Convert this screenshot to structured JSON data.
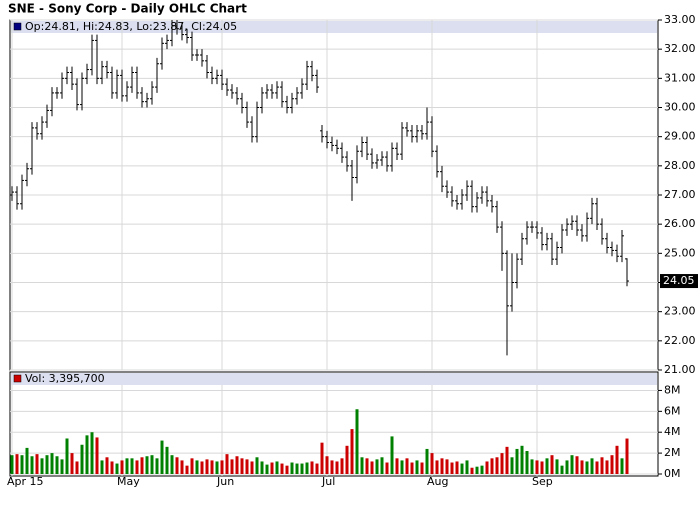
{
  "chart_data": [
    {
      "type": "ohlc",
      "title": "SNE - Sony Corp - Daily OHLC Chart",
      "legend": "Op:24.81, Hi:24.83, Lo:23.87, Cl:24.05",
      "categories": [
        "Apr 15",
        null,
        null,
        null,
        null,
        null,
        null,
        null,
        null,
        null,
        null,
        null,
        null,
        null,
        null,
        null,
        null,
        null,
        null,
        null,
        null,
        null,
        "May",
        null,
        null,
        null,
        null,
        null,
        null,
        null,
        null,
        null,
        null,
        null,
        null,
        null,
        null,
        null,
        null,
        null,
        null,
        null,
        "Jun",
        null,
        null,
        null,
        null,
        null,
        null,
        null,
        null,
        null,
        null,
        null,
        null,
        null,
        null,
        null,
        null,
        null,
        null,
        null,
        null,
        "Jul",
        null,
        null,
        null,
        null,
        null,
        null,
        null,
        null,
        null,
        null,
        null,
        null,
        null,
        null,
        null,
        null,
        null,
        null,
        null,
        null,
        "Aug",
        null,
        null,
        null,
        null,
        null,
        null,
        null,
        null,
        null,
        null,
        null,
        null,
        null,
        null,
        null,
        null,
        null,
        null,
        null,
        null,
        "Sep",
        null,
        null,
        null,
        null,
        null,
        null,
        null,
        null,
        null,
        null,
        null,
        null,
        null,
        null,
        null,
        null,
        null,
        null
      ],
      "open": [
        27.0,
        27.1,
        26.7,
        27.5,
        27.9,
        29.3,
        29.1,
        29.5,
        29.9,
        30.5,
        30.5,
        31.0,
        31.2,
        30.8,
        30.1,
        31.0,
        31.3,
        32.3,
        31.0,
        31.4,
        31.2,
        30.5,
        31.1,
        30.4,
        30.7,
        31.2,
        30.5,
        30.2,
        30.3,
        30.7,
        31.5,
        32.2,
        32.3,
        32.8,
        32.7,
        32.5,
        32.4,
        31.8,
        31.8,
        31.6,
        31.2,
        31.0,
        31.1,
        30.8,
        30.6,
        30.5,
        30.3,
        30.0,
        29.5,
        29.0,
        30.0,
        30.5,
        30.6,
        30.5,
        30.7,
        30.2,
        30.0,
        30.3,
        30.5,
        30.8,
        31.4,
        31.1,
        29.2,
        29.0,
        28.8,
        28.7,
        28.6,
        28.3,
        28.0,
        27.6,
        28.5,
        28.8,
        28.4,
        28.1,
        28.2,
        28.3,
        28.0,
        28.6,
        28.4,
        29.3,
        29.2,
        29.0,
        29.2,
        29.1,
        29.5,
        28.5,
        27.8,
        27.3,
        27.1,
        26.8,
        26.7,
        27.0,
        27.3,
        26.6,
        26.9,
        27.1,
        26.8,
        26.6,
        25.9,
        25.0,
        23.2,
        24.0,
        24.8,
        25.5,
        25.9,
        25.9,
        25.7,
        25.3,
        25.5,
        24.8,
        25.2,
        25.8,
        26.0,
        26.1,
        25.8,
        25.6,
        26.2,
        26.7,
        26.0,
        25.5,
        25.2,
        25.1,
        24.9,
        24.81
      ],
      "high": [
        27.3,
        27.3,
        27.7,
        28.1,
        29.5,
        29.5,
        29.7,
        30.1,
        30.7,
        30.7,
        31.2,
        31.4,
        31.4,
        31.0,
        31.2,
        31.5,
        32.5,
        32.5,
        31.6,
        31.6,
        31.4,
        31.3,
        31.3,
        30.9,
        31.4,
        31.4,
        30.7,
        30.5,
        30.9,
        31.7,
        32.4,
        32.5,
        33.0,
        33.0,
        32.9,
        32.7,
        32.6,
        32.0,
        32.0,
        31.8,
        31.4,
        31.3,
        31.3,
        31.0,
        30.8,
        30.7,
        30.5,
        30.2,
        29.7,
        30.2,
        30.7,
        30.8,
        30.8,
        30.9,
        30.9,
        30.4,
        30.5,
        30.7,
        31.0,
        31.6,
        31.6,
        31.3,
        29.4,
        29.2,
        29.0,
        28.9,
        28.8,
        28.5,
        28.2,
        28.7,
        29.0,
        29.0,
        28.6,
        28.4,
        28.5,
        28.5,
        28.8,
        28.8,
        29.5,
        29.5,
        29.4,
        29.4,
        29.4,
        30.0,
        29.7,
        28.7,
        28.0,
        27.5,
        27.3,
        27.0,
        27.2,
        27.5,
        27.5,
        27.1,
        27.3,
        27.3,
        27.0,
        26.8,
        26.1,
        25.1,
        25.0,
        25.0,
        25.7,
        26.1,
        26.1,
        26.1,
        25.9,
        25.7,
        25.7,
        25.4,
        26.0,
        26.2,
        26.3,
        26.3,
        26.0,
        26.4,
        26.9,
        26.9,
        26.2,
        25.7,
        25.4,
        25.3,
        25.8,
        24.83
      ],
      "low": [
        26.8,
        26.5,
        26.5,
        27.3,
        27.7,
        28.9,
        28.9,
        29.3,
        29.7,
        30.3,
        30.3,
        30.8,
        30.6,
        29.9,
        29.9,
        30.8,
        31.1,
        30.8,
        30.8,
        31.0,
        30.3,
        30.3,
        30.2,
        30.2,
        30.5,
        30.3,
        30.0,
        30.0,
        30.1,
        30.5,
        31.3,
        32.0,
        32.1,
        32.5,
        32.3,
        32.2,
        31.6,
        31.6,
        31.4,
        31.0,
        30.8,
        30.8,
        30.6,
        30.4,
        30.3,
        30.1,
        29.8,
        29.3,
        28.8,
        28.8,
        29.8,
        30.3,
        30.3,
        30.3,
        30.0,
        29.8,
        29.8,
        30.1,
        30.3,
        30.6,
        30.9,
        30.5,
        28.8,
        28.6,
        28.5,
        28.4,
        28.1,
        27.8,
        26.8,
        27.4,
        28.3,
        28.2,
        27.9,
        27.9,
        28.0,
        27.8,
        27.8,
        28.2,
        28.2,
        29.0,
        28.8,
        28.8,
        28.9,
        28.9,
        28.3,
        27.6,
        27.1,
        26.9,
        26.6,
        26.5,
        26.5,
        26.8,
        26.4,
        26.4,
        26.7,
        26.6,
        26.4,
        25.7,
        24.4,
        21.5,
        23.0,
        23.8,
        24.6,
        25.3,
        25.7,
        25.5,
        25.1,
        25.1,
        24.6,
        24.6,
        25.0,
        25.6,
        25.8,
        25.6,
        25.4,
        25.4,
        26.0,
        25.8,
        25.3,
        25.0,
        24.9,
        24.7,
        24.7,
        23.87
      ],
      "close": [
        27.1,
        26.7,
        27.5,
        27.9,
        29.3,
        29.1,
        29.5,
        29.9,
        30.5,
        30.5,
        31.0,
        31.2,
        30.8,
        30.1,
        31.0,
        31.3,
        32.3,
        31.0,
        31.4,
        31.2,
        30.5,
        31.1,
        30.4,
        30.7,
        31.2,
        30.5,
        30.2,
        30.3,
        30.7,
        31.5,
        32.2,
        32.3,
        32.8,
        32.7,
        32.5,
        32.4,
        31.8,
        31.8,
        31.6,
        31.2,
        31.0,
        31.1,
        30.8,
        30.6,
        30.5,
        30.3,
        30.0,
        29.5,
        29.0,
        30.0,
        30.5,
        30.6,
        30.5,
        30.7,
        30.2,
        30.0,
        30.3,
        30.5,
        30.8,
        31.4,
        31.1,
        30.7,
        29.0,
        28.8,
        28.7,
        28.6,
        28.3,
        28.0,
        27.6,
        28.5,
        28.8,
        28.4,
        28.1,
        28.2,
        28.3,
        28.0,
        28.6,
        28.4,
        29.3,
        29.2,
        29.0,
        29.2,
        29.1,
        29.5,
        28.5,
        27.8,
        27.3,
        27.1,
        26.8,
        26.7,
        27.0,
        27.3,
        26.6,
        26.9,
        27.1,
        26.8,
        26.6,
        25.9,
        25.0,
        23.2,
        24.0,
        24.8,
        25.5,
        25.9,
        25.9,
        25.7,
        25.3,
        25.5,
        24.8,
        25.2,
        25.8,
        26.0,
        26.1,
        25.8,
        25.6,
        26.2,
        26.7,
        26.0,
        25.5,
        25.2,
        25.1,
        24.9,
        25.6,
        24.05
      ],
      "color": "#000000",
      "legend_color": "#000080",
      "ylim": [
        21,
        33
      ],
      "yticks": [
        {
          "value": 21,
          "label": "21.00"
        },
        {
          "value": 22,
          "label": "22.00"
        },
        {
          "value": 23,
          "label": "23.00"
        },
        {
          "value": 24,
          "label": "24.00"
        },
        {
          "value": 25,
          "label": "25.00"
        },
        {
          "value": 26,
          "label": "26.00"
        },
        {
          "value": 27,
          "label": "27.00"
        },
        {
          "value": 28,
          "label": "28.00"
        },
        {
          "value": 29,
          "label": "29.00"
        },
        {
          "value": 30,
          "label": "30.00"
        },
        {
          "value": 31,
          "label": "31.00"
        },
        {
          "value": 32,
          "label": "32.00"
        },
        {
          "value": 33,
          "label": "33.00"
        }
      ],
      "grid": true
    },
    {
      "type": "bar",
      "legend": "Vol: 3,395,700",
      "values": [
        1.8,
        1.9,
        1.8,
        2.5,
        1.7,
        1.9,
        1.5,
        1.8,
        2.0,
        1.7,
        1.4,
        3.4,
        2.0,
        1.2,
        2.8,
        3.7,
        4.0,
        3.5,
        1.3,
        1.6,
        1.2,
        1.0,
        1.3,
        1.5,
        1.5,
        1.3,
        1.6,
        1.7,
        1.8,
        1.5,
        3.2,
        2.6,
        1.8,
        1.6,
        1.3,
        0.8,
        1.5,
        1.3,
        1.2,
        1.4,
        1.3,
        1.2,
        1.3,
        1.9,
        1.4,
        1.7,
        1.5,
        1.4,
        1.2,
        1.6,
        1.2,
        0.9,
        1.1,
        1.2,
        1.0,
        0.8,
        1.1,
        1.0,
        1.0,
        1.1,
        1.2,
        1.0,
        3.0,
        1.7,
        1.3,
        1.2,
        1.5,
        2.7,
        4.3,
        6.2,
        1.6,
        1.5,
        1.2,
        1.4,
        1.6,
        1.1,
        3.6,
        1.5,
        1.3,
        1.5,
        1.1,
        1.3,
        1.1,
        2.4,
        2.0,
        1.3,
        1.5,
        1.4,
        1.1,
        1.2,
        1.0,
        1.3,
        0.6,
        0.7,
        0.8,
        1.2,
        1.5,
        1.6,
        2.0,
        2.6,
        1.6,
        2.4,
        2.7,
        2.2,
        1.4,
        1.3,
        1.2,
        1.5,
        1.8,
        1.4,
        0.8,
        1.3,
        1.8,
        1.7,
        1.3,
        1.2,
        1.5,
        1.2,
        1.6,
        1.3,
        1.8,
        2.7,
        1.5,
        3.3957
      ],
      "color_up": "#008000",
      "color_down": "#cc0000",
      "legend_color": "#cc0000",
      "ylim": [
        0,
        9
      ],
      "yticks": [
        {
          "value": 0,
          "label": "0M"
        },
        {
          "value": 2,
          "label": "2M"
        },
        {
          "value": 4,
          "label": "4M"
        },
        {
          "value": 6,
          "label": "6M"
        },
        {
          "value": 8,
          "label": "8M"
        }
      ],
      "grid": true
    }
  ]
}
